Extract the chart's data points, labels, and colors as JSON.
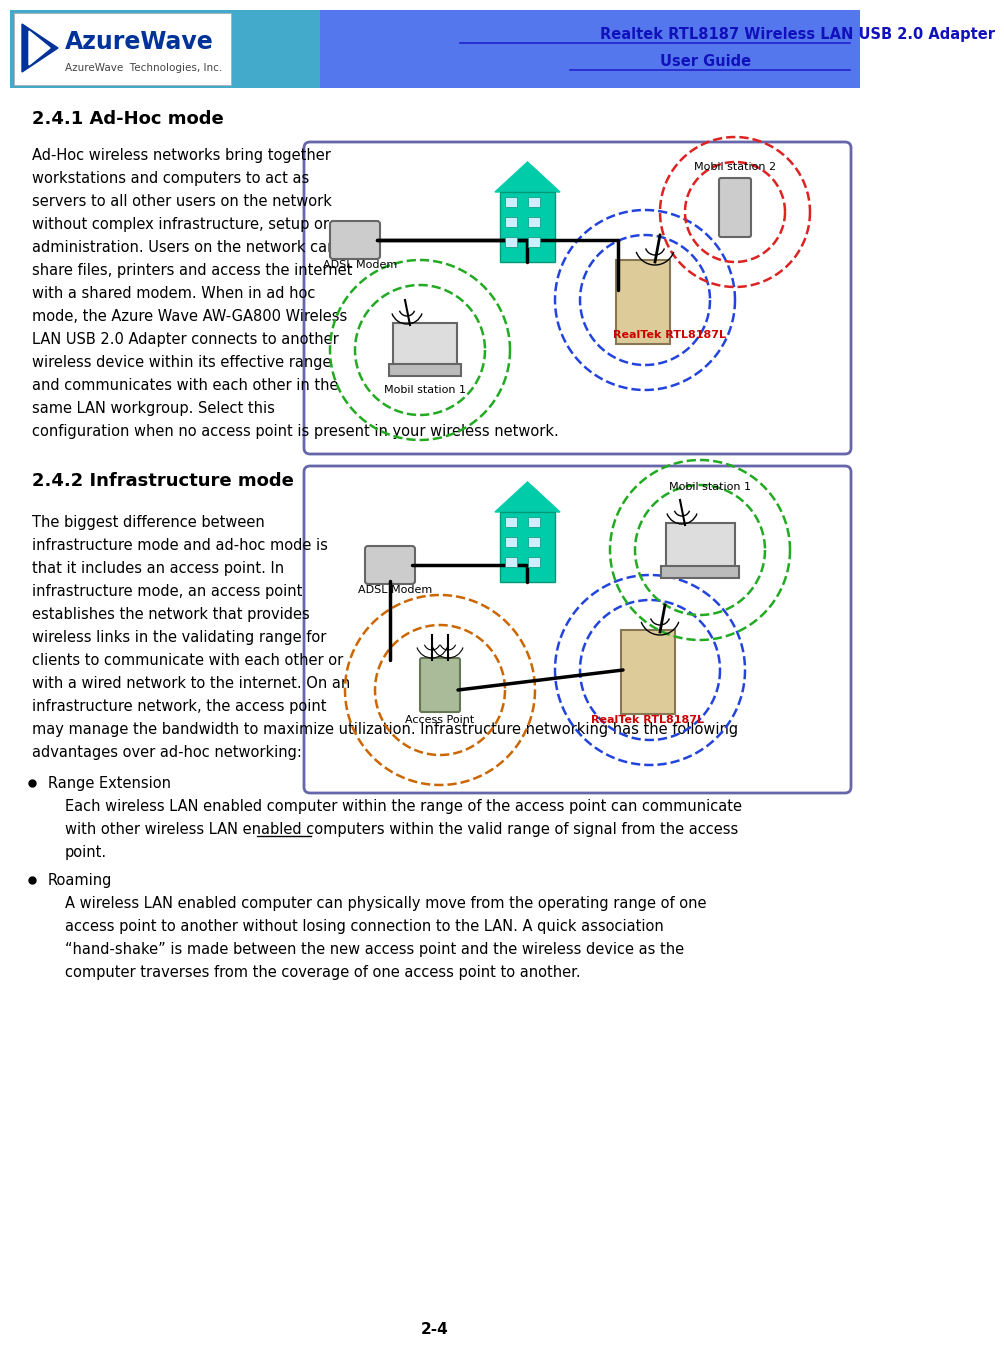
{
  "title_line1": "Realtek RTL8187 Wireless LAN USB 2.0 Adapter",
  "title_line2": "User Guide",
  "section1_title": "2.4.1 Ad-Hoc mode",
  "section2_title": "2.4.2 Infrastructure mode",
  "body1_lines": [
    "Ad-Hoc wireless networks bring together",
    "workstations and computers to act as",
    "servers to all other users on the network",
    "without complex infrastructure, setup or",
    "administration. Users on the network can",
    "share files, printers and access the internet",
    "with a shared modem. When in ad hoc",
    "mode, the Azure Wave AW-GA800 Wireless",
    "LAN USB 2.0 Adapter connects to another",
    "wireless device within its effective range",
    "and communicates with each other in the",
    "same LAN workgroup. Select this"
  ],
  "body1_last": "configuration when no access point is present in your wireless network.",
  "body2_lines": [
    "The biggest difference between",
    "infrastructure mode and ad-hoc mode is",
    "that it includes an access point. In",
    "infrastructure mode, an access point",
    "establishes the network that provides",
    "wireless links in the validating range for",
    "clients to communicate with each other or",
    "with a wired network to the internet. On an",
    "infrastructure network, the access point"
  ],
  "body2_last1": "may manage the bandwidth to maximize utilization. Infrastructure networking has the following",
  "body2_last2": "advantages over ad-hoc networking:",
  "bullet1_title": "Range Extension",
  "bullet1_lines": [
    "Each wireless LAN enabled computer within the range of the access point can communicate",
    "with other wireless LAN enabled computers within the valid range of signal from the access",
    "point."
  ],
  "bullet2_title": "Roaming",
  "bullet2_lines": [
    "A wireless LAN enabled computer can physically move from the operating range of one",
    "access point to another without losing connection to the LAN. A quick association",
    "“hand-shake” is made between the new access point and the wireless device as the",
    "computer traverses from the coverage of one access point to another."
  ],
  "page_number": "2-4",
  "bg_color": "#ffffff",
  "text_color": "#000000",
  "header_blue": "#5577ee",
  "header_teal": "#44aacc",
  "diagram_border": "#6666aa",
  "teal_building": "#00ccaa",
  "red_circle": "#dd2222",
  "blue_circle": "#2244dd",
  "green_circle": "#22aa22",
  "brown_circle": "#cc6600",
  "realtek_color": "#cc0000",
  "body_fontsize": 10.5,
  "section_fontsize": 13,
  "header_fontsize1": 11,
  "underline_color": "#2222cc"
}
